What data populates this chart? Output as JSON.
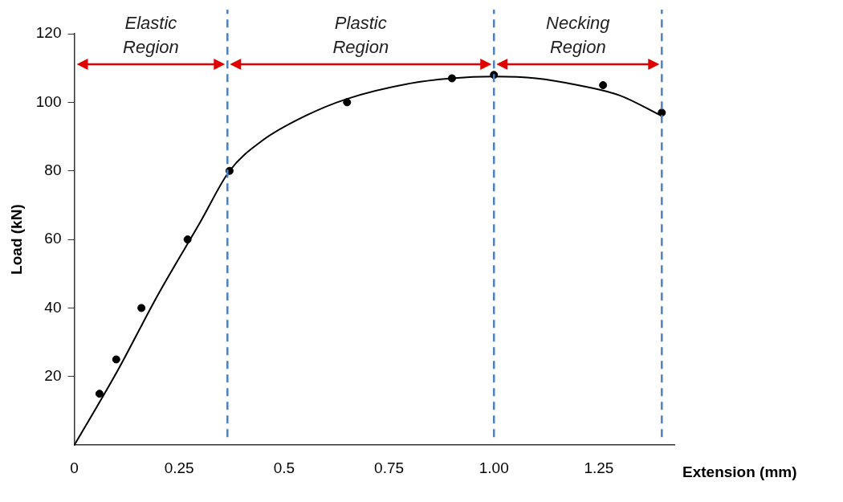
{
  "chart_data": {
    "type": "scatter",
    "xlabel": "Extension (mm)",
    "ylabel": "Load (kN)",
    "xlim": [
      0,
      1.43
    ],
    "xticks": [
      0,
      0.25,
      0.5,
      0.75,
      {
        "value": 1,
        "label": "1.00"
      },
      1.25
    ],
    "ylim": [
      0,
      120
    ],
    "yticks": [
      20,
      40,
      60,
      80,
      100,
      120
    ],
    "grid": false,
    "legend": false,
    "marker": "circle",
    "series": [
      {
        "color": "#000000",
        "x": [
          0.06,
          0.1,
          0.16,
          0.27,
          0.37,
          0.65,
          0.9,
          1.0,
          1.26,
          1.4
        ],
        "values": [
          15,
          25,
          40,
          60,
          80,
          100,
          107,
          108,
          105,
          97
        ]
      },
      {
        "type": "line",
        "color": "#000000",
        "marker": "none",
        "x": [
          0,
          0.1,
          0.2,
          0.3,
          0.37,
          0.45,
          0.55,
          0.65,
          0.8,
          0.9,
          1.0,
          1.1,
          1.2,
          1.3,
          1.4
        ],
        "values": [
          0,
          21,
          44,
          65,
          80,
          89,
          96,
          101,
          105.5,
          107,
          107.5,
          107,
          105,
          102,
          96
        ]
      }
    ],
    "ref_lines": [
      {
        "axis": "x",
        "value": 0.365,
        "color": "#4f81bd",
        "line_style": "dashed"
      },
      {
        "axis": "x",
        "value": 1.0,
        "color": "#4f81bd",
        "line_style": "dashed"
      },
      {
        "axis": "x",
        "value": 1.4,
        "color": "#4f81bd",
        "line_style": "dashed"
      }
    ],
    "annotations": [
      "Elastic Region",
      "Plastic Region",
      "Necking Region"
    ]
  }
}
